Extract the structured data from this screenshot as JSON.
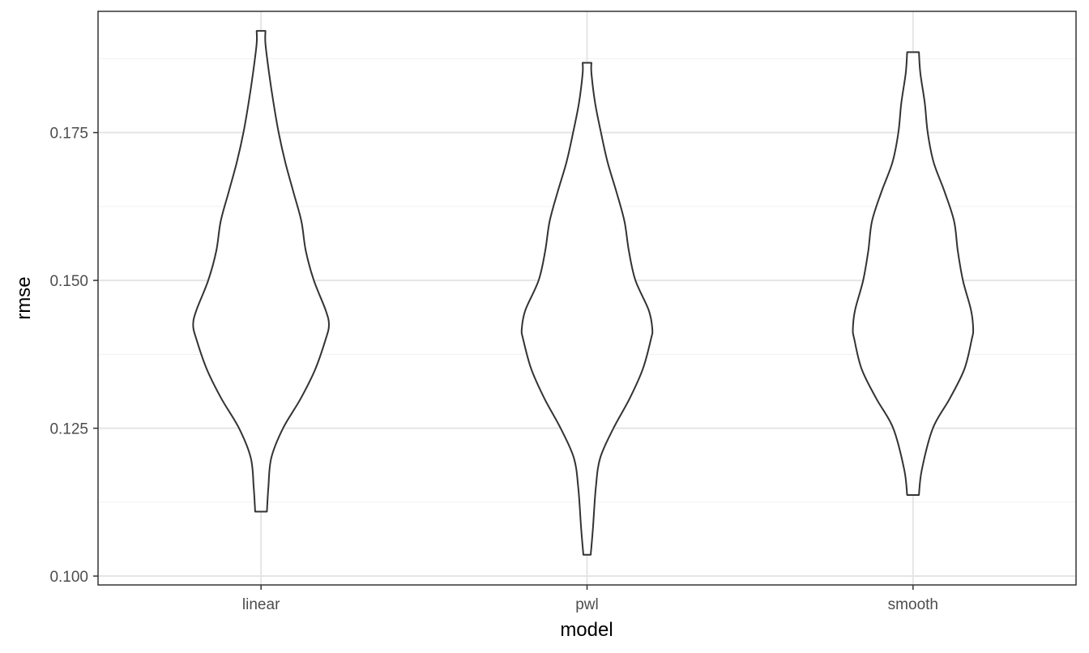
{
  "chart_data": {
    "type": "violin",
    "xlabel": "model",
    "ylabel": "rmse",
    "categories": [
      "linear",
      "pwl",
      "smooth"
    ],
    "ylim": [
      0.0985,
      0.1955
    ],
    "yticks": [
      0.1,
      0.125,
      0.15,
      0.175
    ],
    "ytick_labels": [
      "0.100",
      "0.125",
      "0.150",
      "0.175"
    ],
    "grid": true,
    "fill_color": "#ffffff",
    "outline_color": "#333333",
    "series": [
      {
        "category": "linear",
        "min": 0.1109,
        "max": 0.1922,
        "profile": [
          [
            0.1109,
            0.04
          ],
          [
            0.115,
            0.05
          ],
          [
            0.12,
            0.07
          ],
          [
            0.125,
            0.15
          ],
          [
            0.13,
            0.27
          ],
          [
            0.135,
            0.37
          ],
          [
            0.14,
            0.44
          ],
          [
            0.1425,
            0.463
          ],
          [
            0.145,
            0.44
          ],
          [
            0.15,
            0.36
          ],
          [
            0.155,
            0.305
          ],
          [
            0.16,
            0.275
          ],
          [
            0.165,
            0.22
          ],
          [
            0.17,
            0.165
          ],
          [
            0.175,
            0.12
          ],
          [
            0.18,
            0.085
          ],
          [
            0.185,
            0.055
          ],
          [
            0.19,
            0.03
          ],
          [
            0.1922,
            0.03
          ]
        ]
      },
      {
        "category": "pwl",
        "min": 0.1036,
        "max": 0.1868,
        "profile": [
          [
            0.1036,
            0.025
          ],
          [
            0.108,
            0.04
          ],
          [
            0.115,
            0.06
          ],
          [
            0.12,
            0.09
          ],
          [
            0.125,
            0.18
          ],
          [
            0.13,
            0.29
          ],
          [
            0.135,
            0.38
          ],
          [
            0.14,
            0.435
          ],
          [
            0.1418,
            0.445
          ],
          [
            0.145,
            0.42
          ],
          [
            0.15,
            0.33
          ],
          [
            0.155,
            0.285
          ],
          [
            0.16,
            0.255
          ],
          [
            0.165,
            0.2
          ],
          [
            0.17,
            0.14
          ],
          [
            0.175,
            0.095
          ],
          [
            0.18,
            0.055
          ],
          [
            0.185,
            0.03
          ],
          [
            0.1868,
            0.03
          ]
        ]
      },
      {
        "category": "smooth",
        "min": 0.1137,
        "max": 0.1886,
        "profile": [
          [
            0.1137,
            0.04
          ],
          [
            0.118,
            0.06
          ],
          [
            0.125,
            0.135
          ],
          [
            0.13,
            0.25
          ],
          [
            0.135,
            0.35
          ],
          [
            0.14,
            0.4
          ],
          [
            0.1418,
            0.41
          ],
          [
            0.145,
            0.395
          ],
          [
            0.15,
            0.34
          ],
          [
            0.155,
            0.305
          ],
          [
            0.16,
            0.28
          ],
          [
            0.165,
            0.215
          ],
          [
            0.17,
            0.14
          ],
          [
            0.175,
            0.1
          ],
          [
            0.18,
            0.08
          ],
          [
            0.185,
            0.05
          ],
          [
            0.1886,
            0.04
          ]
        ]
      }
    ]
  }
}
